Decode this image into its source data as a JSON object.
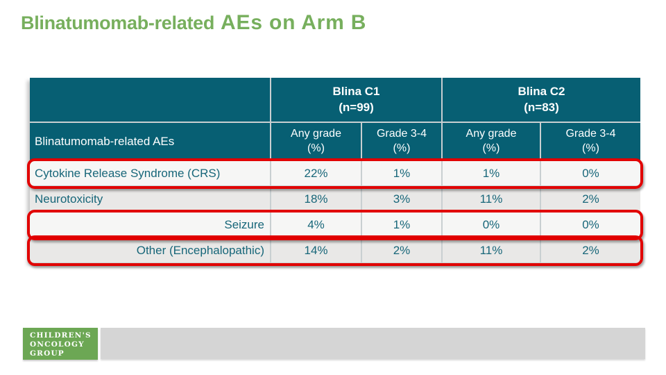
{
  "title": {
    "part1": "Blinatumomab-related",
    "part2": "AEs on Arm B"
  },
  "table": {
    "row_header": "Blinatumomab-related AEs",
    "groups": [
      {
        "name": "Blina C1",
        "n": "(n=99)"
      },
      {
        "name": "Blina C2",
        "n": "(n=83)"
      }
    ],
    "subheaders": [
      {
        "label": "Any grade",
        "unit": "(%)"
      },
      {
        "label": "Grade 3-4",
        "unit": "(%)"
      },
      {
        "label": "Any grade",
        "unit": "(%)"
      },
      {
        "label": "Grade 3-4",
        "unit": "(%)"
      }
    ],
    "rows": [
      {
        "label": "Cytokine Release Syndrome (CRS)",
        "values": [
          "22%",
          "1%",
          "1%",
          "0%"
        ],
        "highlighted": true
      },
      {
        "label": "Neurotoxicity",
        "values": [
          "18%",
          "3%",
          "11%",
          "2%"
        ],
        "highlighted": false
      },
      {
        "label": "Seizure",
        "values": [
          "4%",
          "1%",
          "0%",
          "0%"
        ],
        "highlighted": true
      },
      {
        "label": "Other (Encephalopathic)",
        "values": [
          "14%",
          "2%",
          "11%",
          "2%"
        ],
        "highlighted": true
      }
    ]
  },
  "logo": {
    "lines": [
      "CHILDREN'S",
      "ONCOLOGY",
      "GROUP"
    ]
  },
  "colors": {
    "header_teal": "#075F73",
    "text_teal": "#176679",
    "title_green": "#77AF5D",
    "logo_green": "#6CA754",
    "highlight_red": "#E10000",
    "footer_gray": "#D5D5D5"
  }
}
